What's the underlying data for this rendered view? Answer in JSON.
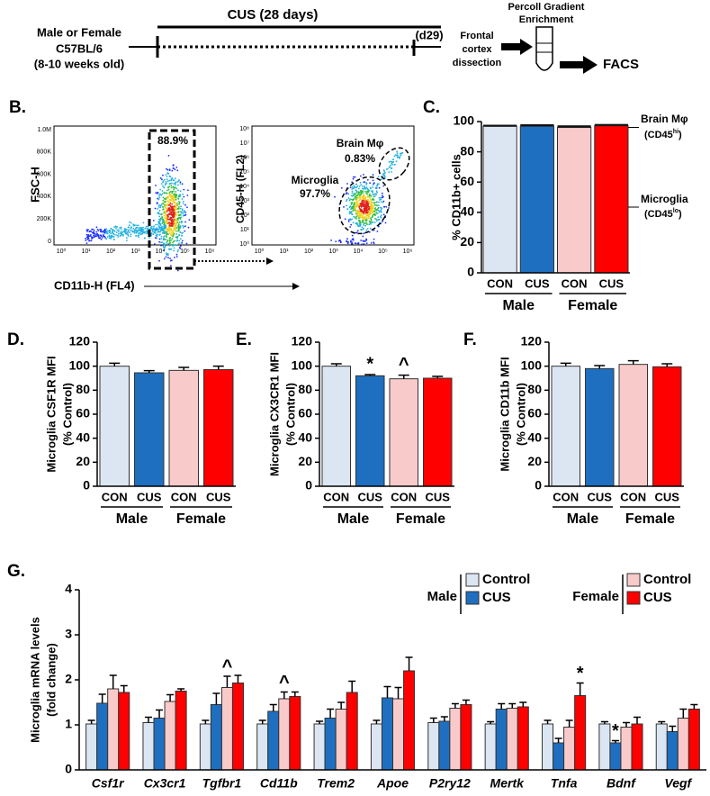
{
  "panel_a": {
    "mouse": [
      "Male or Female",
      "C57BL/6",
      "(8-10 weeks old)"
    ],
    "period": "CUS (28 days)",
    "end_day": "(d29)",
    "dissection": [
      "Frontal",
      "cortex",
      "dissection"
    ],
    "enrichment": [
      "Percoll Gradient",
      "Enrichment"
    ],
    "readout": "FACS"
  },
  "panel_b": {
    "label": "B.",
    "gate_percent": "88.9%",
    "y_label_1": "FSC-H",
    "x_label": "CD11b-H (FL4)",
    "y_label_2": "CD45-H (FL2)",
    "brain": [
      "Brain Mφ",
      "0.83%"
    ],
    "microglia": [
      "Microglia",
      "97.7%"
    ],
    "plot1_yticks": [
      "1.0M",
      "800K",
      "600K",
      "400K",
      "200K",
      "0"
    ],
    "xticks": [
      "10⁰",
      "10¹",
      "10²",
      "10³",
      "10⁴",
      "10⁵",
      "10⁶"
    ],
    "plot2_yticks": [
      "10⁸",
      "10⁷",
      "10⁶",
      "10⁵",
      "10⁴",
      "10³",
      "10²",
      "10¹",
      "10⁰"
    ]
  },
  "chart_data": [
    {
      "type": "stacked_bar",
      "panel": "C.",
      "ylabel": [
        "% CD11b+ cells"
      ],
      "categories": [
        "CON",
        "CUS",
        "CON",
        "CUS"
      ],
      "groups": [
        "Male",
        "Female"
      ],
      "series": [
        {
          "name": "Microglia",
          "marker": [
            "(CD45",
            "lo",
            ")"
          ],
          "colors": [
            "#dce6f2",
            "#1f6fc0",
            "#f9caca",
            "#ff0000"
          ],
          "values": [
            96.8,
            96.9,
            96.1,
            97.2
          ]
        },
        {
          "name": "Brain Mφ",
          "marker": [
            "(CD45",
            "hi",
            ")"
          ],
          "color": "#111111",
          "values": [
            1.1,
            1.3,
            1.4,
            1.2
          ]
        }
      ],
      "ylim": [
        0,
        100
      ],
      "yticks": [
        0,
        20,
        40,
        60,
        80,
        100
      ]
    },
    {
      "type": "bar",
      "panel": "D.",
      "ylabel": [
        "Microglia CSF1R MFI",
        "(% Control)"
      ],
      "categories": [
        "CON",
        "CUS",
        "CON",
        "CUS"
      ],
      "groups": [
        "Male",
        "Female"
      ],
      "colors": [
        "#dce6f2",
        "#1f6fc0",
        "#f9caca",
        "#ff0000"
      ],
      "values": [
        100,
        94.5,
        96.5,
        97.2
      ],
      "errors": [
        2.5,
        1.8,
        2.5,
        2.8
      ],
      "annotations": [
        null,
        null,
        null,
        null
      ],
      "ylim": [
        0,
        120
      ],
      "yticks": [
        0,
        20,
        40,
        60,
        80,
        100,
        120
      ]
    },
    {
      "type": "bar",
      "panel": "E.",
      "ylabel": [
        "Microglia CX3CR1 MFI",
        "(% Control)"
      ],
      "categories": [
        "CON",
        "CUS",
        "CON",
        "CUS"
      ],
      "groups": [
        "Male",
        "Female"
      ],
      "colors": [
        "#dce6f2",
        "#1f6fc0",
        "#f9caca",
        "#ff0000"
      ],
      "values": [
        100,
        92,
        89.5,
        90
      ],
      "errors": [
        2,
        1,
        3,
        1.5
      ],
      "annotations": [
        null,
        "*",
        "^",
        null
      ],
      "ylim": [
        0,
        120
      ],
      "yticks": [
        0,
        20,
        40,
        60,
        80,
        100,
        120
      ]
    },
    {
      "type": "bar",
      "panel": "F.",
      "ylabel": [
        "Microglia CD11b MFI",
        "(% Control)"
      ],
      "categories": [
        "CON",
        "CUS",
        "CON",
        "CUS"
      ],
      "groups": [
        "Male",
        "Female"
      ],
      "colors": [
        "#dce6f2",
        "#1f6fc0",
        "#f9caca",
        "#ff0000"
      ],
      "values": [
        100,
        98,
        101.5,
        99.5
      ],
      "errors": [
        2.5,
        2.5,
        3,
        2.5
      ],
      "annotations": [
        null,
        null,
        null,
        null
      ],
      "ylim": [
        0,
        120
      ],
      "yticks": [
        0,
        20,
        40,
        60,
        80,
        100,
        120
      ]
    },
    {
      "type": "grouped_bar",
      "panel": "G.",
      "ylabel": [
        "Microglia mRNA levels",
        "(fold change)"
      ],
      "categories": [
        "Csf1r",
        "Cx3cr1",
        "Tgfbr1",
        "Cd11b",
        "Trem2",
        "Apoe",
        "P2ry12",
        "Mertk",
        "Tnfa",
        "Bdnf",
        "Vegf"
      ],
      "series": [
        {
          "name": "Control",
          "group": "Male",
          "color": "#dce6f2",
          "values": [
            1.02,
            1.05,
            1.02,
            1.02,
            1.02,
            1.02,
            1.05,
            1.02,
            1.02,
            1.02,
            1.02
          ],
          "errors": [
            0.08,
            0.12,
            0.08,
            0.08,
            0.06,
            0.08,
            0.1,
            0.05,
            0.08,
            0.05,
            0.05
          ],
          "annotations": [
            null,
            null,
            null,
            null,
            null,
            null,
            null,
            null,
            null,
            null,
            null
          ]
        },
        {
          "name": "CUS",
          "group": "Male",
          "color": "#1f6fc0",
          "values": [
            1.48,
            1.15,
            1.45,
            1.3,
            1.15,
            1.6,
            1.08,
            1.35,
            0.6,
            0.6,
            0.85
          ],
          "errors": [
            0.2,
            0.18,
            0.25,
            0.15,
            0.2,
            0.25,
            0.1,
            0.12,
            0.1,
            0.05,
            0.12
          ],
          "annotations": [
            null,
            null,
            null,
            null,
            null,
            null,
            null,
            null,
            null,
            "*",
            null
          ]
        },
        {
          "name": "Control",
          "group": "Female",
          "color": "#f9caca",
          "values": [
            1.8,
            1.52,
            1.83,
            1.58,
            1.35,
            1.58,
            1.37,
            1.37,
            0.95,
            0.95,
            1.15
          ],
          "errors": [
            0.3,
            0.15,
            0.25,
            0.15,
            0.15,
            0.25,
            0.1,
            0.1,
            0.15,
            0.1,
            0.2
          ],
          "annotations": [
            null,
            null,
            "^",
            "^",
            null,
            null,
            null,
            null,
            null,
            null,
            null
          ]
        },
        {
          "name": "CUS",
          "group": "Female",
          "color": "#ff0000",
          "values": [
            1.72,
            1.75,
            1.93,
            1.63,
            1.72,
            2.2,
            1.45,
            1.4,
            1.65,
            1.02,
            1.35
          ],
          "errors": [
            0.15,
            0.05,
            0.17,
            0.1,
            0.25,
            0.3,
            0.1,
            0.1,
            0.28,
            0.15,
            0.1
          ],
          "annotations": [
            null,
            null,
            null,
            null,
            null,
            null,
            null,
            null,
            "*",
            null,
            null
          ]
        }
      ],
      "ylim": [
        0,
        4
      ],
      "yticks": [
        0,
        1,
        2,
        3,
        4
      ]
    }
  ]
}
